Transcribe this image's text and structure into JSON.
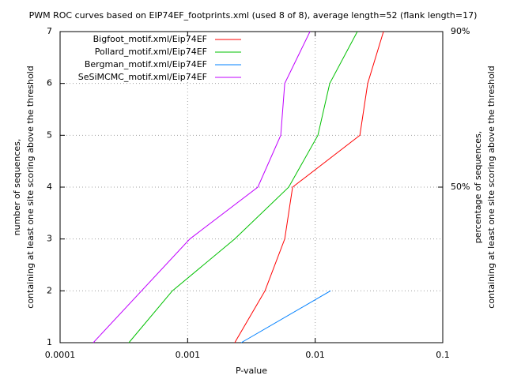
{
  "chart_data": {
    "type": "line",
    "title": "PWM ROC curves based on EIP74EF_footprints.xml (used 8 of 8), average length=52 (flank length=17)",
    "x_label": "P-value",
    "y_label": [
      "number of sequences,",
      "containing at least one site scoring above the threshold"
    ],
    "y2_label": [
      "percentage of sequences,",
      "containing at least one site scoring above the threshold"
    ],
    "x_log": true,
    "grid": true,
    "legend": "top-left",
    "xlim": [
      0.0001,
      0.1
    ],
    "xticks": [
      0.0001,
      0.001,
      0.01,
      0.1
    ],
    "ylim": [
      1,
      7
    ],
    "yticks": [
      1,
      2,
      3,
      4,
      5,
      6,
      7
    ],
    "y2lim": [
      10,
      90
    ],
    "y2ticks": [
      {
        "value": 90,
        "label": "90%"
      },
      {
        "value": 50,
        "label": "50%"
      }
    ],
    "series": [
      {
        "name": "Bigfoot_motif.xml/Eip74EF",
        "color": "#ff0000",
        "x": [
          0.00234,
          0.00404,
          0.00577,
          0.00665,
          0.0224,
          0.0258,
          0.0343
        ],
        "values": [
          1,
          2,
          3,
          4,
          5,
          6,
          7
        ]
      },
      {
        "name": "Pollard_motif.xml/Eip74EF",
        "color": "#00c000",
        "x": [
          0.000346,
          0.000759,
          0.00234,
          0.0062,
          0.0105,
          0.013,
          0.0214
        ],
        "values": [
          1,
          2,
          3,
          4,
          5,
          6,
          7
        ]
      },
      {
        "name": "Bergman_motif.xml/Eip74EF",
        "color": "#0080ff",
        "x": [
          0.00263,
          0.0132
        ],
        "values": [
          1,
          2
        ]
      },
      {
        "name": "SeSiMCMC_motif.xml/Eip74EF",
        "color": "#c000ff",
        "x": [
          0.000182,
          0.00104,
          0.00355,
          0.00537,
          0.00577,
          0.0091
        ],
        "values": [
          1,
          3,
          4,
          5,
          6,
          7
        ]
      }
    ]
  }
}
